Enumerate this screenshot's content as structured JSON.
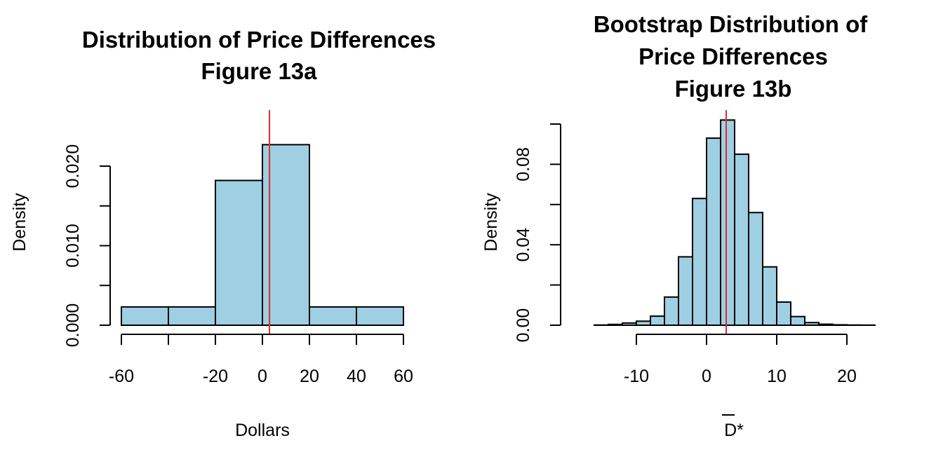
{
  "colors": {
    "bar_fill": "#9ecfe2",
    "ref_line": "#e8282b",
    "axis": "#000000"
  },
  "chart_data": [
    {
      "type": "bar",
      "title_lines": [
        "Distribution of Price Differences",
        "Figure 13a"
      ],
      "xlabel": "Dollars",
      "ylabel": "Density",
      "breaks": [
        -60,
        -40,
        -20,
        0,
        20,
        40,
        60
      ],
      "values": [
        0.0023,
        0.0023,
        0.0182,
        0.0227,
        0.0023,
        0.0023
      ],
      "ref_line_x": 3,
      "xlim": [
        -60,
        60
      ],
      "ylim": [
        0,
        0.023
      ],
      "x_ticks": [
        -60,
        -40,
        -20,
        0,
        20,
        40,
        60
      ],
      "x_tick_labels": [
        "-60",
        "",
        "-20",
        "0",
        "20",
        "40",
        "60"
      ],
      "y_ticks": [
        0,
        0.005,
        0.01,
        0.015,
        0.02
      ],
      "y_tick_labels": [
        "0.000",
        "",
        "0.010",
        "",
        "0.020"
      ],
      "grid": false
    },
    {
      "type": "bar",
      "title_lines": [
        "Bootstrap Distribution of",
        "Price Differences",
        "Figure 13b"
      ],
      "xlabel": "D*",
      "xlabel_overline": true,
      "ylabel": "Density",
      "breaks": [
        -16,
        -14,
        -12,
        -10,
        -8,
        -6,
        -4,
        -2,
        0,
        2,
        4,
        6,
        8,
        10,
        12,
        14,
        16,
        18,
        20,
        22,
        24
      ],
      "values": [
        0.0001,
        0.0004,
        0.0011,
        0.002,
        0.0045,
        0.014,
        0.034,
        0.063,
        0.093,
        0.102,
        0.085,
        0.056,
        0.029,
        0.0115,
        0.0043,
        0.0013,
        0.0005,
        0.0002,
        0.0001,
        5e-05
      ],
      "ref_line_x": 2.8,
      "xlim": [
        -16,
        24
      ],
      "ylim": [
        0,
        0.1
      ],
      "x_ticks": [
        -10,
        0,
        10,
        20
      ],
      "x_tick_labels": [
        "-10",
        "0",
        "10",
        "20"
      ],
      "y_ticks": [
        0,
        0.02,
        0.04,
        0.06,
        0.08,
        0.1
      ],
      "y_tick_labels": [
        "0.00",
        "",
        "0.04",
        "",
        "0.08",
        ""
      ],
      "grid": false
    }
  ]
}
